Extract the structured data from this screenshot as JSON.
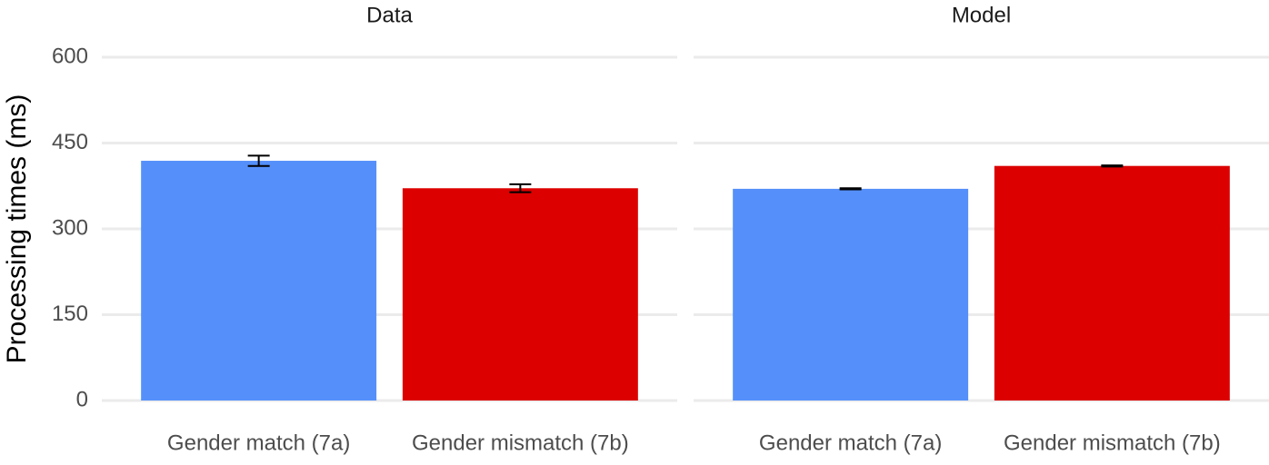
{
  "chart_data": [
    {
      "type": "bar",
      "title": "Data",
      "y_label": "Processing times (ms)",
      "categories": [
        "Gender match (7a)",
        "Gender mismatch (7b)"
      ],
      "values": [
        419,
        371
      ],
      "errors": [
        9,
        7
      ],
      "colors": [
        "#5590fa",
        "#dc0000"
      ],
      "ylim": [
        0,
        600
      ],
      "yticks": [
        0,
        150,
        300,
        450,
        600
      ],
      "grid": true
    },
    {
      "type": "bar",
      "title": "Model",
      "categories": [
        "Gender match (7a)",
        "Gender mismatch (7b)"
      ],
      "values": [
        370,
        410
      ],
      "errors": [
        1,
        1
      ],
      "colors": [
        "#5590fa",
        "#dc0000"
      ],
      "ylim": [
        0,
        600
      ],
      "yticks": [
        0,
        150,
        300,
        450,
        600
      ],
      "grid": true
    }
  ]
}
